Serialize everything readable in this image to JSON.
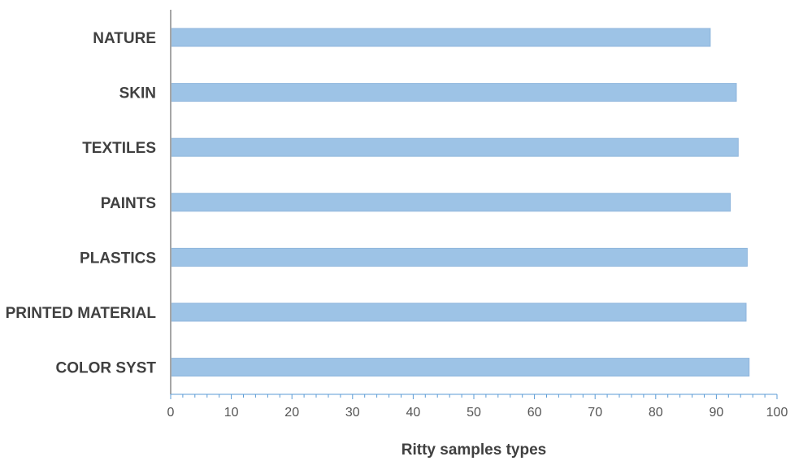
{
  "chart_data": {
    "type": "bar",
    "orientation": "horizontal",
    "categories": [
      "NATURE",
      "SKIN",
      "TEXTILES",
      "PAINTS",
      "PLASTICS",
      "PRINTED MATERIAL",
      "COLOR SYST"
    ],
    "values": [
      89,
      93.3,
      93.6,
      92.3,
      95.1,
      94.9,
      95.4
    ],
    "title": "",
    "xlabel": "Ritty samples types",
    "ylabel": "",
    "xlim": [
      0,
      100
    ],
    "xticks": [
      0,
      10,
      20,
      30,
      40,
      50,
      60,
      70,
      80,
      90,
      100
    ],
    "minor_ticks_per_major": 5,
    "grid": false,
    "legend": "none",
    "colors": {
      "bar": "#9dc3e6",
      "bar_edge": "#8fb6dc",
      "axis": "#a6a6a6",
      "ticks": "#5b9bd5"
    }
  }
}
